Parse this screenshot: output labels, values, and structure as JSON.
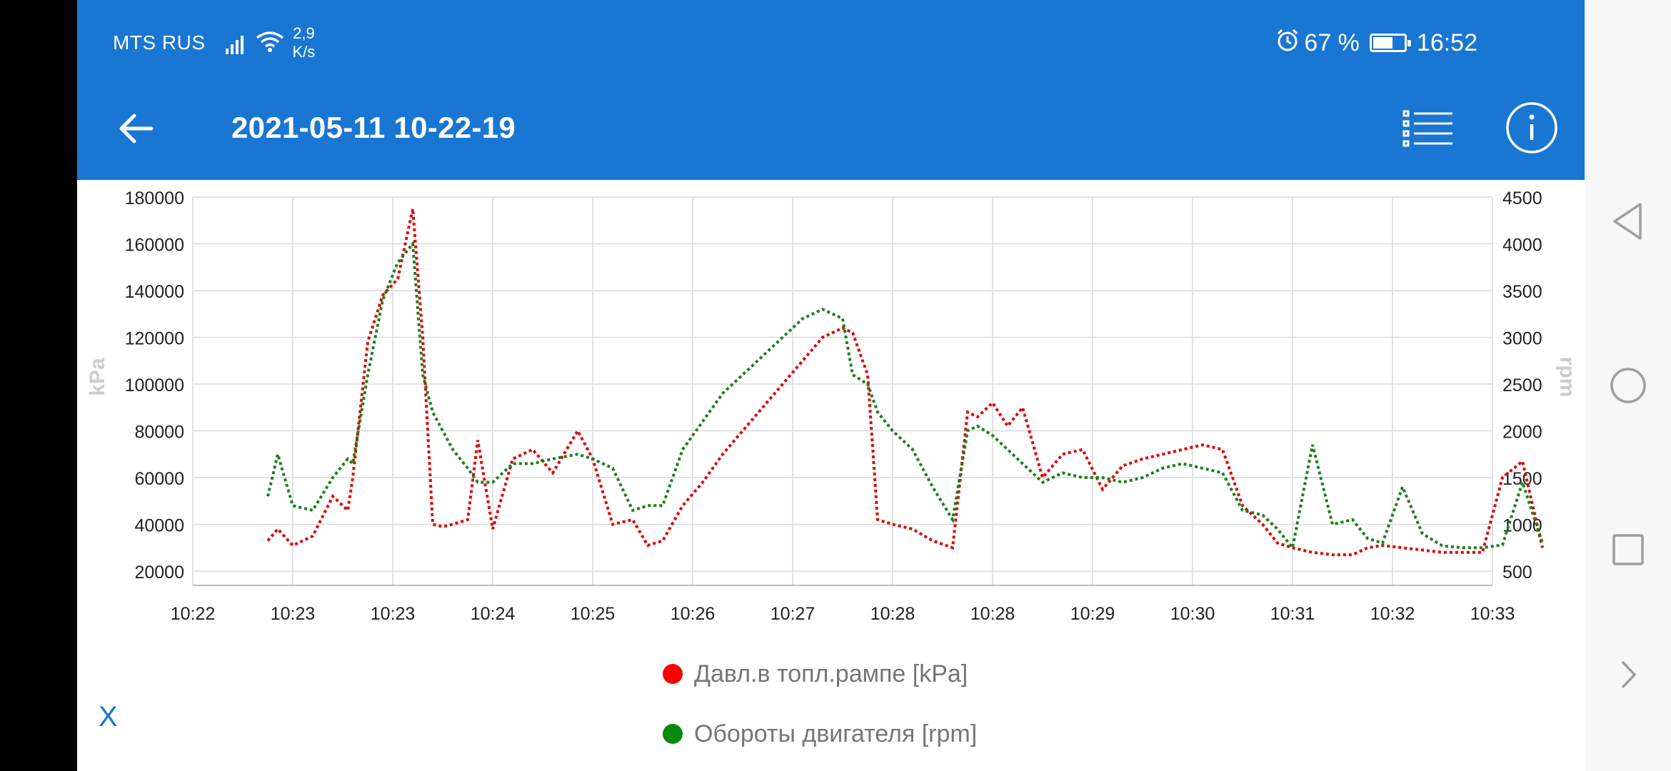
{
  "status_bar": {
    "carrier": "MTS RUS",
    "net_speed_value": "2,9",
    "net_speed_unit": "K/s",
    "battery_text": "67 %",
    "battery_level": 0.67,
    "time": "16:52",
    "icons": [
      "signal-icon",
      "wifi-icon",
      "alarm-icon",
      "battery-icon"
    ]
  },
  "app_bar": {
    "title": "2021-05-11 10-22-19",
    "back_icon": "arrow-left-icon",
    "list_icon": "list-icon",
    "info_icon": "info-icon"
  },
  "chart_data": {
    "type": "line",
    "x_ticks": [
      "10:22",
      "10:23",
      "10:23",
      "10:24",
      "10:25",
      "10:26",
      "10:27",
      "10:28",
      "10:28",
      "10:29",
      "10:30",
      "10:31",
      "10:32",
      "10:33"
    ],
    "x": [
      0.75,
      0.85,
      1.0,
      1.2,
      1.4,
      1.55,
      1.6,
      1.75,
      1.9,
      2.05,
      2.2,
      2.3,
      2.4,
      2.5,
      2.6,
      2.75,
      2.85,
      3.0,
      3.2,
      3.4,
      3.6,
      3.85,
      4.0,
      4.2,
      4.4,
      4.55,
      4.7,
      4.9,
      5.1,
      5.3,
      5.5,
      5.7,
      5.9,
      6.1,
      6.3,
      6.5,
      6.6,
      6.75,
      6.85,
      7.0,
      7.2,
      7.4,
      7.6,
      7.75,
      7.85,
      8.0,
      8.15,
      8.3,
      8.5,
      8.7,
      8.9,
      9.1,
      9.3,
      9.5,
      9.7,
      9.9,
      10.1,
      10.3,
      10.5,
      10.7,
      10.85,
      11.0,
      11.2,
      11.4,
      11.6,
      11.75,
      11.9,
      12.1,
      12.3,
      12.5,
      12.7,
      12.9,
      13.1,
      13.3,
      13.5
    ],
    "series": [
      {
        "name": "Давл.в топл.рампе [kPa]",
        "axis": "left",
        "color": "#e00000",
        "values": [
          33000,
          38000,
          31000,
          35000,
          52000,
          46000,
          60000,
          118000,
          138000,
          145000,
          175000,
          120000,
          40000,
          39000,
          40000,
          42000,
          76000,
          38000,
          68000,
          72000,
          62000,
          80000,
          68000,
          40000,
          42000,
          31000,
          33000,
          48000,
          58000,
          70000,
          80000,
          90000,
          100000,
          110000,
          120000,
          124000,
          122000,
          104000,
          42000,
          40000,
          38000,
          33000,
          30000,
          88000,
          86000,
          92000,
          82000,
          90000,
          60000,
          70000,
          72000,
          55000,
          65000,
          68000,
          70000,
          72000,
          74000,
          72000,
          48000,
          40000,
          32000,
          30000,
          28000,
          27000,
          27000,
          30000,
          31000,
          30000,
          29000,
          28000,
          28000,
          28000,
          60000,
          67000,
          30000
        ]
      },
      {
        "name": "Обороты двигателя [rpm]",
        "axis": "right",
        "color": "#1a7f1a",
        "values": [
          1300,
          1750,
          1200,
          1150,
          1500,
          1700,
          1650,
          2600,
          3400,
          3800,
          4000,
          2600,
          2200,
          2000,
          1800,
          1600,
          1450,
          1450,
          1650,
          1650,
          1700,
          1750,
          1700,
          1600,
          1150,
          1200,
          1200,
          1800,
          2100,
          2400,
          2600,
          2800,
          3000,
          3200,
          3300,
          3200,
          2600,
          2500,
          2200,
          2000,
          1800,
          1400,
          1050,
          2000,
          2050,
          1950,
          1800,
          1650,
          1450,
          1550,
          1500,
          1500,
          1450,
          1500,
          1600,
          1650,
          1600,
          1550,
          1150,
          1100,
          950,
          750,
          1850,
          1000,
          1050,
          850,
          800,
          1400,
          900,
          770,
          750,
          750,
          780,
          1450,
          800
        ]
      }
    ],
    "y_left": {
      "label": "kPa",
      "ticks": [
        20000,
        40000,
        60000,
        80000,
        100000,
        120000,
        140000,
        160000,
        180000
      ],
      "range": [
        20000,
        180000
      ]
    },
    "y_right": {
      "label": "rpm",
      "ticks": [
        500,
        1000,
        1500,
        2000,
        2500,
        3000,
        3500,
        4000,
        4500
      ],
      "range": [
        500,
        4500
      ]
    },
    "grid": true,
    "legend_position": "bottom-center",
    "legend": [
      "Давл.в топл.рампе [kPa]",
      "Обороты двигателя [rpm]"
    ]
  },
  "close_button": {
    "label": "X"
  },
  "nav_bar": {
    "icons": [
      "back-triangle-icon",
      "home-circle-icon",
      "recents-square-icon",
      "chevron-right-icon"
    ]
  }
}
